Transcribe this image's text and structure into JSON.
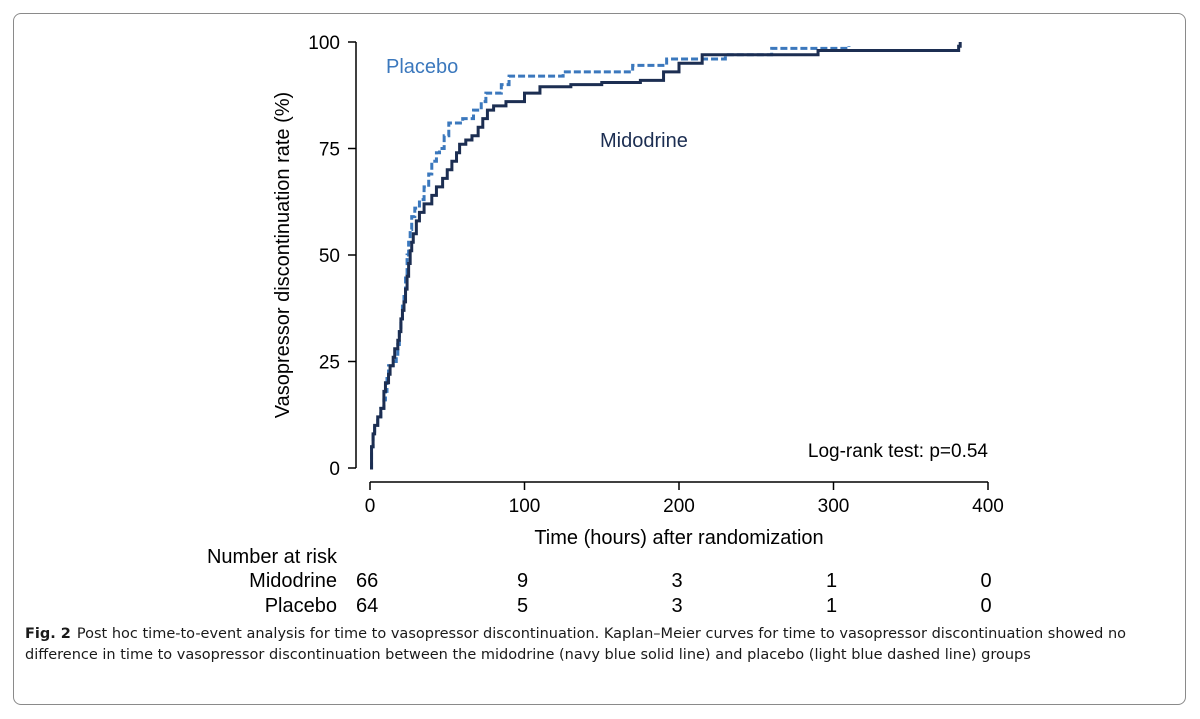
{
  "chart_data": {
    "type": "line",
    "subtype": "kaplan-meier-step",
    "xlabel": "Time (hours) after randomization",
    "ylabel": "Vasopressor discontinuation rate (%)",
    "xlim": [
      0,
      400
    ],
    "ylim": [
      0,
      100
    ],
    "x_ticks": [
      0,
      100,
      200,
      300,
      400
    ],
    "y_ticks": [
      0,
      25,
      50,
      75,
      100
    ],
    "grid": false,
    "annotation": "Log-rank test: p=0.54",
    "series": [
      {
        "name": "Midodrine",
        "color": "#1c2e52",
        "style": "solid",
        "points": [
          [
            0,
            0
          ],
          [
            1,
            5
          ],
          [
            2,
            8
          ],
          [
            3,
            10
          ],
          [
            5,
            12
          ],
          [
            7,
            14
          ],
          [
            9,
            18
          ],
          [
            10,
            20
          ],
          [
            12,
            22
          ],
          [
            13,
            24
          ],
          [
            15,
            26
          ],
          [
            16,
            28
          ],
          [
            18,
            30
          ],
          [
            19,
            32
          ],
          [
            20,
            35
          ],
          [
            21,
            37
          ],
          [
            22,
            39
          ],
          [
            23,
            42
          ],
          [
            24,
            45
          ],
          [
            25,
            48
          ],
          [
            26,
            51
          ],
          [
            27,
            53
          ],
          [
            28,
            55
          ],
          [
            30,
            58
          ],
          [
            32,
            60
          ],
          [
            35,
            62
          ],
          [
            40,
            64
          ],
          [
            43,
            66
          ],
          [
            47,
            68
          ],
          [
            50,
            70
          ],
          [
            53,
            72
          ],
          [
            56,
            74
          ],
          [
            58,
            76
          ],
          [
            62,
            77
          ],
          [
            66,
            78
          ],
          [
            70,
            80
          ],
          [
            73,
            82
          ],
          [
            76,
            84
          ],
          [
            80,
            85
          ],
          [
            88,
            86
          ],
          [
            100,
            88
          ],
          [
            110,
            89.5
          ],
          [
            130,
            90
          ],
          [
            150,
            90.5
          ],
          [
            175,
            91
          ],
          [
            190,
            93
          ],
          [
            200,
            95
          ],
          [
            215,
            97
          ],
          [
            260,
            97
          ],
          [
            290,
            98
          ],
          [
            380,
            98
          ],
          [
            381,
            99
          ],
          [
            382,
            100
          ]
        ]
      },
      {
        "name": "Placebo",
        "color": "#3b78bd",
        "style": "dashed",
        "points": [
          [
            0,
            0
          ],
          [
            1,
            5
          ],
          [
            2,
            8
          ],
          [
            3,
            10
          ],
          [
            5,
            12
          ],
          [
            7,
            14
          ],
          [
            9,
            16
          ],
          [
            10,
            18
          ],
          [
            11,
            21
          ],
          [
            12,
            24
          ],
          [
            15,
            25
          ],
          [
            17,
            26
          ],
          [
            18,
            29
          ],
          [
            19,
            32
          ],
          [
            20,
            35
          ],
          [
            21,
            38
          ],
          [
            22,
            41
          ],
          [
            23,
            45
          ],
          [
            24,
            50
          ],
          [
            25,
            53
          ],
          [
            26,
            56
          ],
          [
            27,
            59
          ],
          [
            29,
            61
          ],
          [
            32,
            63
          ],
          [
            35,
            66
          ],
          [
            38,
            69
          ],
          [
            40,
            72
          ],
          [
            43,
            74
          ],
          [
            45,
            75
          ],
          [
            48,
            78
          ],
          [
            51,
            81
          ],
          [
            60,
            82
          ],
          [
            67,
            84
          ],
          [
            72,
            86
          ],
          [
            75,
            88
          ],
          [
            85,
            90
          ],
          [
            90,
            92
          ],
          [
            110,
            92
          ],
          [
            125,
            93
          ],
          [
            170,
            94.5
          ],
          [
            192,
            96
          ],
          [
            230,
            97
          ],
          [
            260,
            98.5
          ],
          [
            310,
            99
          ]
        ]
      }
    ],
    "number_at_risk": {
      "heading": "Number at risk",
      "time_points": [
        0,
        100,
        200,
        300,
        400
      ],
      "rows": [
        {
          "label": "Midodrine",
          "values": [
            "66",
            "9",
            "3",
            "1",
            "0"
          ]
        },
        {
          "label": "Placebo",
          "values": [
            "64",
            "5",
            "3",
            "1",
            "0"
          ]
        }
      ]
    }
  },
  "caption": {
    "label": "Fig. 2",
    "text": "Post hoc time-to-event analysis for time to vasopressor discontinuation. Kaplan–Meier curves for time to vasopressor discontinuation showed no difference in time to vasopressor discontinuation between the midodrine (navy blue solid line) and placebo (light blue dashed line) groups"
  }
}
